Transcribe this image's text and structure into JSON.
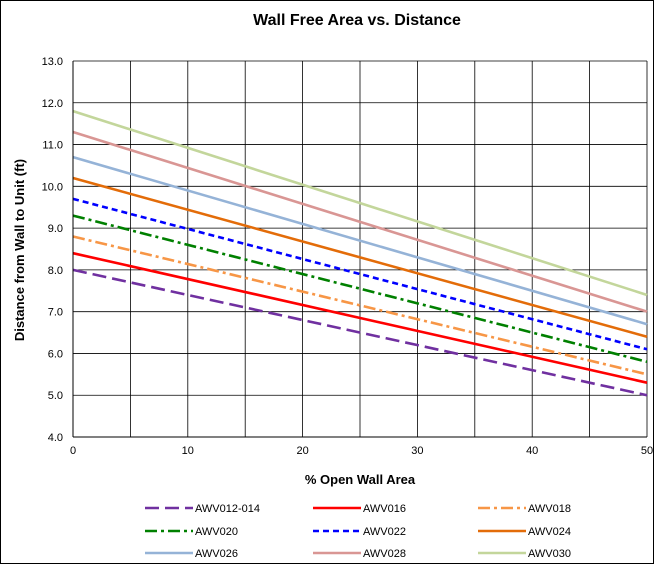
{
  "chart_data": {
    "type": "line",
    "title": "Wall Free Area vs. Distance",
    "xlabel": "% Open Wall Area",
    "ylabel": "Distance from Wall to Unit (ft)",
    "xlim": [
      0,
      50
    ],
    "ylim": [
      4.0,
      13.0
    ],
    "x_ticks": [
      "0",
      "10",
      "20",
      "30",
      "40",
      "50"
    ],
    "y_ticks": [
      "4.0",
      "5.0",
      "6.0",
      "7.0",
      "8.0",
      "9.0",
      "10.0",
      "11.0",
      "12.0",
      "13.0"
    ],
    "grid": true,
    "legend_position": "bottom",
    "x": [
      0,
      50
    ],
    "series": [
      {
        "name": "AWV012-014",
        "values": [
          8.0,
          5.0
        ],
        "color": "#7030a0",
        "dash": "long-dash"
      },
      {
        "name": "AWV016",
        "values": [
          8.4,
          5.3
        ],
        "color": "#ff0000",
        "dash": "solid"
      },
      {
        "name": "AWV018",
        "values": [
          8.8,
          5.5
        ],
        "color": "#f79646",
        "dash": "dash-dot"
      },
      {
        "name": "AWV020",
        "values": [
          9.3,
          5.8
        ],
        "color": "#008000",
        "dash": "dash-dot"
      },
      {
        "name": "AWV022",
        "values": [
          9.7,
          6.1
        ],
        "color": "#0000ff",
        "dash": "short-dash"
      },
      {
        "name": "AWV024",
        "values": [
          10.2,
          6.4
        ],
        "color": "#e36c09",
        "dash": "solid"
      },
      {
        "name": "AWV026",
        "values": [
          10.7,
          6.7
        ],
        "color": "#95b3d7",
        "dash": "solid"
      },
      {
        "name": "AWV028",
        "values": [
          11.3,
          7.0
        ],
        "color": "#d99694",
        "dash": "solid"
      },
      {
        "name": "AWV030",
        "values": [
          11.8,
          7.4
        ],
        "color": "#c3d69b",
        "dash": "solid"
      }
    ]
  }
}
